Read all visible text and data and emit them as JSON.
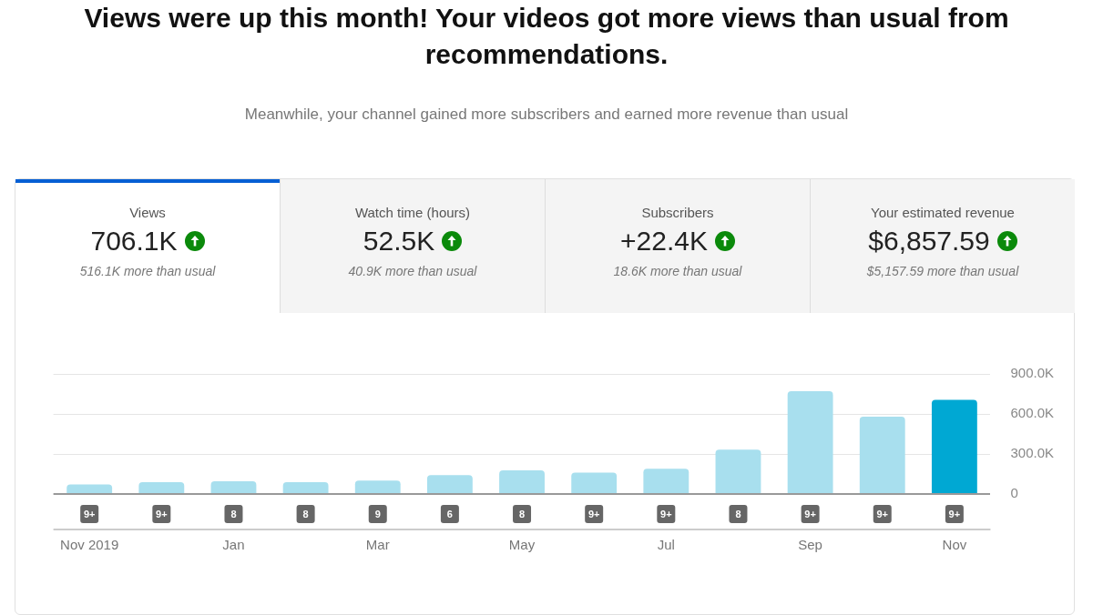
{
  "chart_data": [
    {
      "type": "other",
      "title": "Views were up this month! Your videos got more views than usual from recommendations.",
      "subtitle": "Meanwhile, your channel gained more subscribers and earned more revenue than usual",
      "annotations": [
        "Views",
        "706.1K",
        "516.1K more than usual",
        "Watch time (hours)",
        "52.5K",
        "40.9K more than usual",
        "Subscribers",
        "+22.4K",
        "18.6K more than usual",
        "Your estimated revenue",
        "$6,857.59",
        "$5,157.59 more than usual"
      ]
    },
    {
      "type": "bar",
      "categories": [
        "Nov 2019",
        null,
        "Jan",
        null,
        "Mar",
        null,
        "May",
        null,
        "Jul",
        null,
        "Sep",
        null,
        "Nov"
      ],
      "values": [
        71000,
        89000,
        95000,
        89000,
        100000,
        142000,
        178000,
        160000,
        190000,
        332000,
        770000,
        580000,
        706100
      ],
      "colors": [
        "#a8dfee",
        "#a8dfee",
        "#a8dfee",
        "#a8dfee",
        "#a8dfee",
        "#a8dfee",
        "#a8dfee",
        "#a8dfee",
        "#a8dfee",
        "#a8dfee",
        "#a8dfee",
        "#a8dfee",
        "#00a8d3"
      ],
      "ylim": [
        0,
        900000
      ],
      "yticks": [
        {
          "value": 0,
          "label": "0"
        },
        {
          "value": 300000,
          "label": "300.0K"
        },
        {
          "value": 600000,
          "label": "600.0K"
        },
        {
          "value": 900000,
          "label": "900.0K"
        }
      ],
      "grid": "y",
      "annotations": [
        "9+",
        "9+",
        "8",
        "8",
        "9",
        "6",
        "8",
        "9+",
        "9+",
        "8",
        "9+",
        "9+",
        "9+"
      ]
    }
  ]
}
